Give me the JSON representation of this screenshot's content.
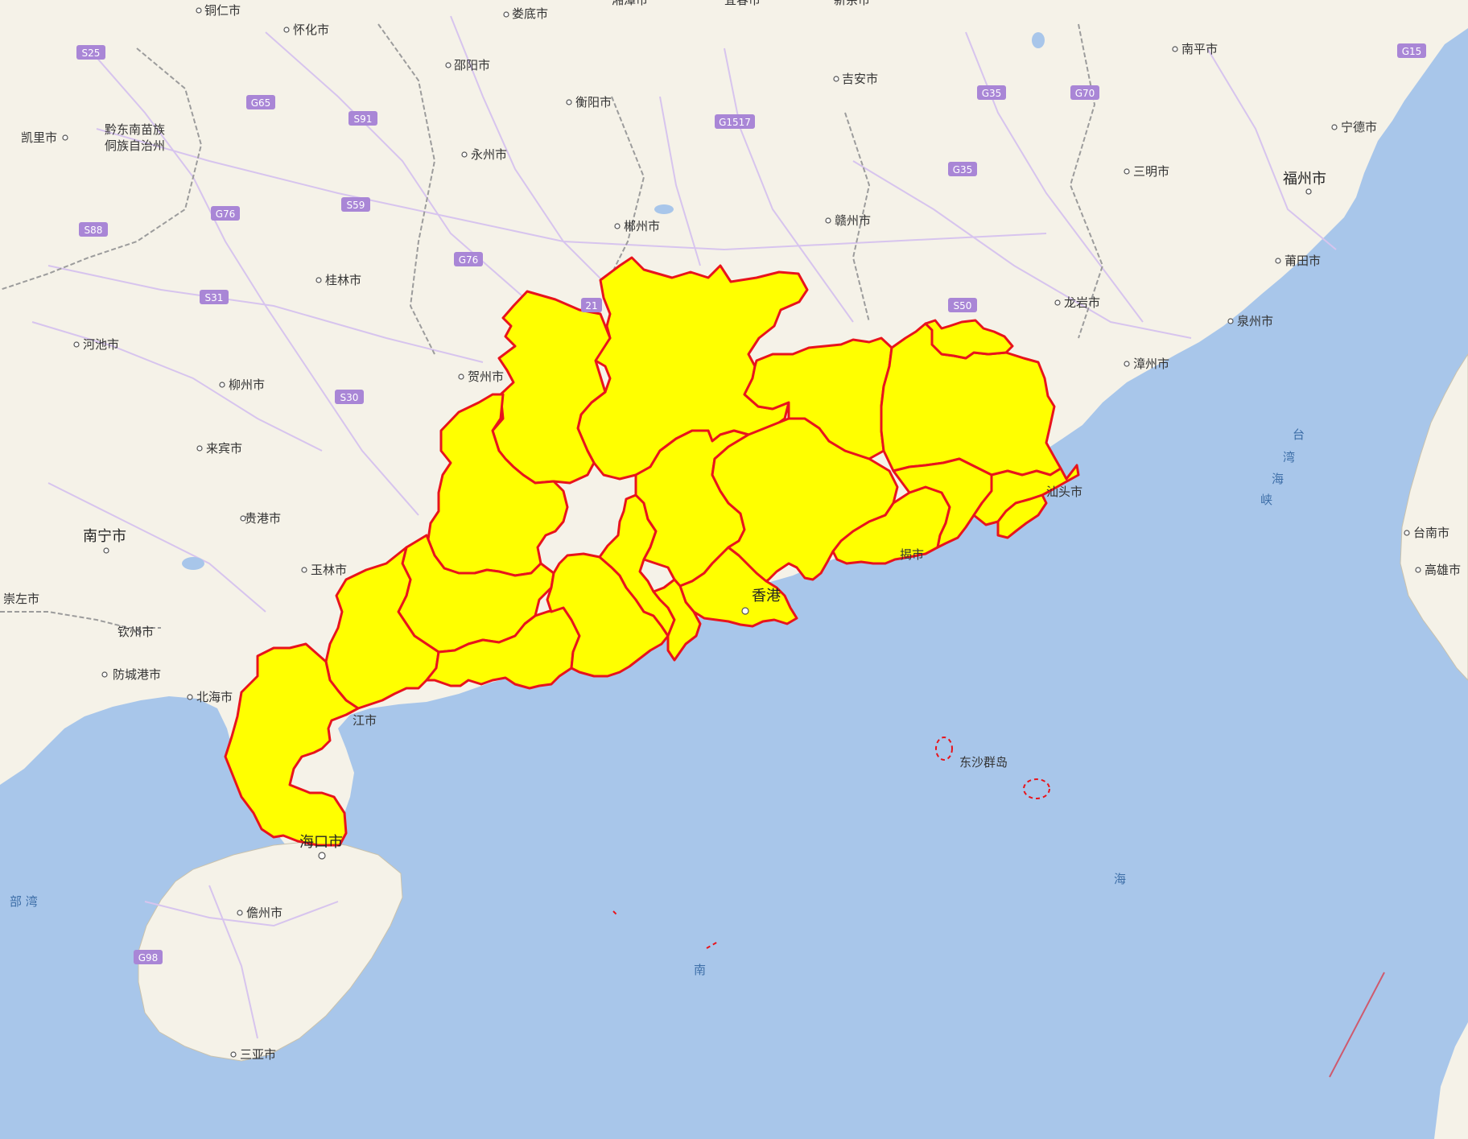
{
  "map": {
    "colors": {
      "sea": "#a8c6ea",
      "land": "#f5f2e8",
      "region_fill": "#ffff00",
      "region_border": "#e8141c",
      "highway_shield": "#a986d6",
      "road": "#d7c4ee",
      "province_border": "#9c9c9c",
      "label": "#333333"
    },
    "highlight": {
      "province": "Guangdong",
      "level": "yellow"
    },
    "cities": [
      {
        "name": "铜仁市"
      },
      {
        "name": "怀化市"
      },
      {
        "name": "娄底市"
      },
      {
        "name": "湘潭市"
      },
      {
        "name": "宜春市"
      },
      {
        "name": "新余市"
      },
      {
        "name": "邵阳市"
      },
      {
        "name": "南平市"
      },
      {
        "name": "吉安市"
      },
      {
        "name": "衡阳市"
      },
      {
        "name": "凯里市"
      },
      {
        "name": "宁德市"
      },
      {
        "name": "永州市"
      },
      {
        "name": "三明市"
      },
      {
        "name": "福州市"
      },
      {
        "name": "郴州市"
      },
      {
        "name": "赣州市"
      },
      {
        "name": "桂林市"
      },
      {
        "name": "莆田市"
      },
      {
        "name": "龙岩市"
      },
      {
        "name": "泉州市"
      },
      {
        "name": "河池市"
      },
      {
        "name": "漳州市"
      },
      {
        "name": "贺州市"
      },
      {
        "name": "柳州市"
      },
      {
        "name": "来宾市"
      },
      {
        "name": "汕头市"
      },
      {
        "name": "贵港市"
      },
      {
        "name": "南宁市"
      },
      {
        "name": "台南市"
      },
      {
        "name": "玉林市"
      },
      {
        "name": "揭市"
      },
      {
        "name": "高雄市"
      },
      {
        "name": "崇左市"
      },
      {
        "name": "香港"
      },
      {
        "name": "钦州市"
      },
      {
        "name": "防城港市"
      },
      {
        "name": "北海市"
      },
      {
        "name": "江市"
      },
      {
        "name": "东沙群岛"
      },
      {
        "name": "海口市"
      },
      {
        "name": "儋州市"
      },
      {
        "name": "三亚市"
      }
    ],
    "region_labels": {
      "qiandongnan_1": "黔东南苗族",
      "qiandongnan_2": "侗族自治州"
    },
    "sea_labels": {
      "taiwan_strait_1": "台",
      "taiwan_strait_2": "湾",
      "taiwan_strait_3": "海",
      "taiwan_strait_4": "峡",
      "beibu_gulf": "部 湾",
      "south_sea_1": "海",
      "south_sea_2": "南"
    },
    "highways": [
      {
        "code": "S25"
      },
      {
        "code": "G65"
      },
      {
        "code": "S91"
      },
      {
        "code": "G1517"
      },
      {
        "code": "G35"
      },
      {
        "code": "G70"
      },
      {
        "code": "G15"
      },
      {
        "code": "G76"
      },
      {
        "code": "S59"
      },
      {
        "code": "S88"
      },
      {
        "code": "S31"
      },
      {
        "code": "S30"
      },
      {
        "code": "S50"
      },
      {
        "code": "G98"
      },
      {
        "code": "21"
      }
    ]
  }
}
